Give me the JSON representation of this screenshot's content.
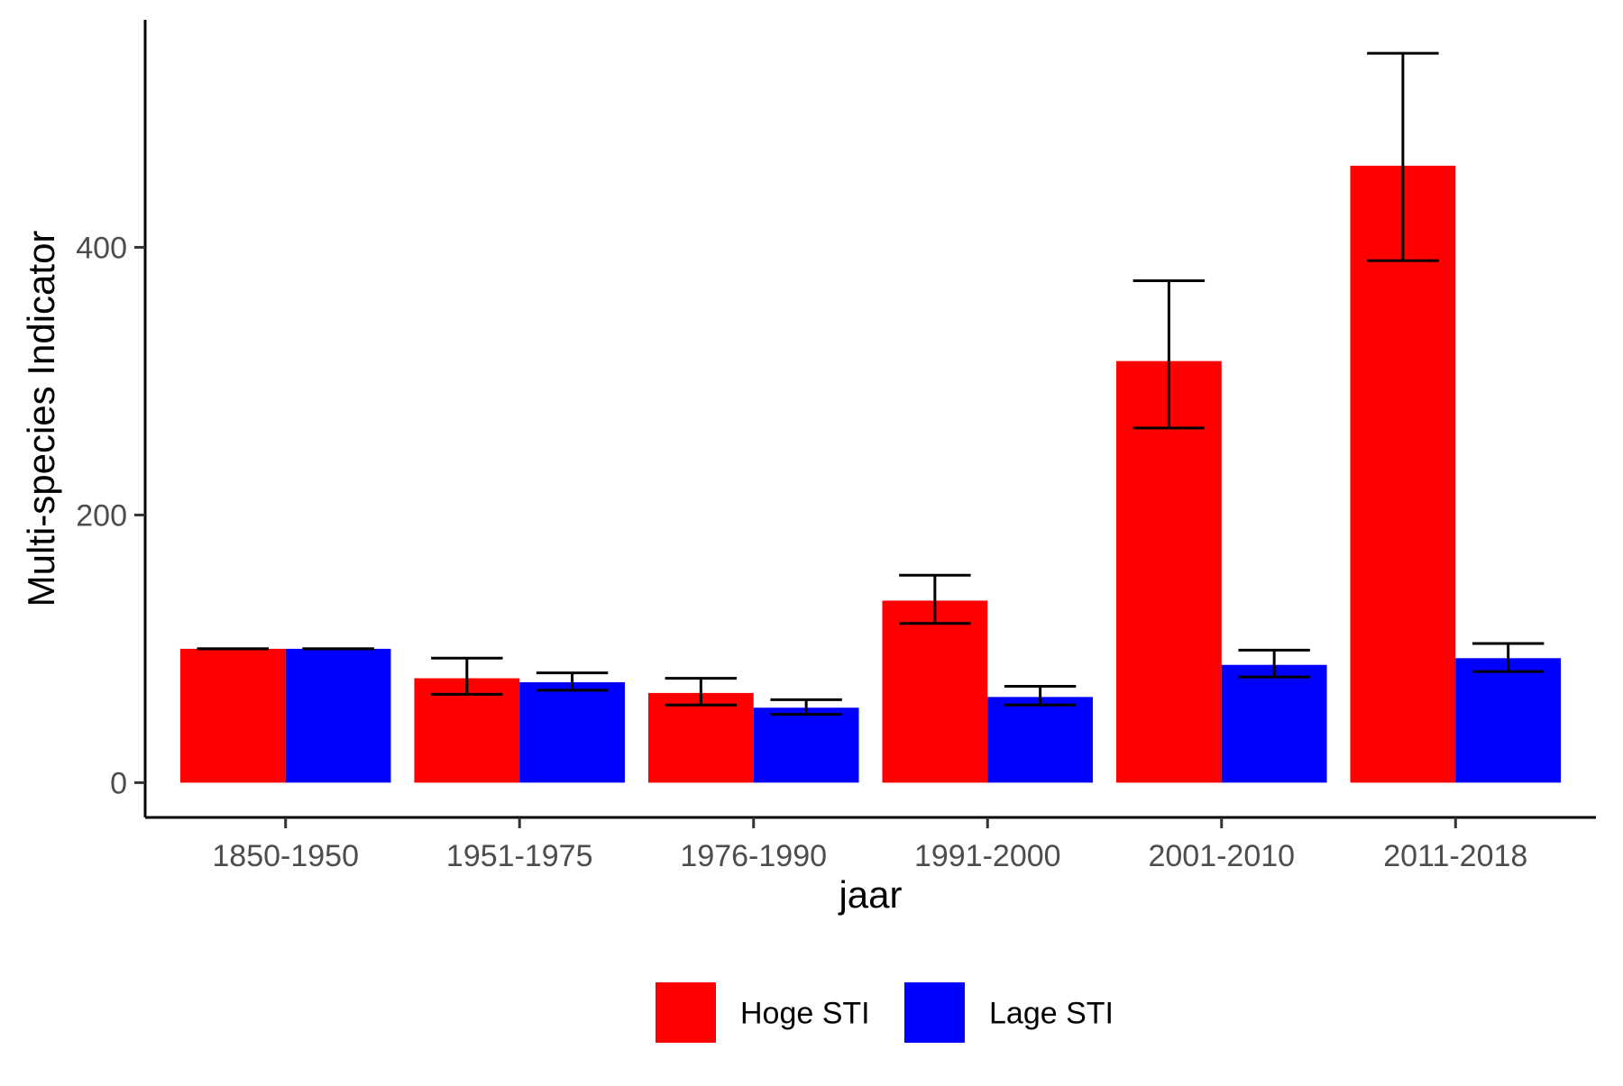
{
  "chart_data": {
    "type": "bar",
    "xlabel": "jaar",
    "ylabel": "Multi-species Indicator",
    "categories": [
      "1850-1950",
      "1951-1975",
      "1976-1990",
      "1991-2000",
      "2001-2010",
      "2011-2018"
    ],
    "ylim": [
      -26,
      570
    ],
    "yticks": [
      0,
      200,
      400
    ],
    "grid": false,
    "legend_position": "bottom",
    "series": [
      {
        "name": "Hoge STI",
        "color": "#FF0000",
        "values": [
          100,
          78,
          67,
          136,
          315,
          461
        ],
        "error_low": [
          100,
          66,
          58,
          119,
          265,
          390
        ],
        "error_high": [
          100,
          93,
          78,
          155,
          375,
          545
        ]
      },
      {
        "name": "Lage STI",
        "color": "#0000FF",
        "values": [
          100,
          75,
          56,
          64,
          88,
          93
        ],
        "error_low": [
          100,
          69,
          51,
          58,
          79,
          83
        ],
        "error_high": [
          100,
          82,
          62,
          72,
          99,
          104
        ]
      }
    ]
  }
}
